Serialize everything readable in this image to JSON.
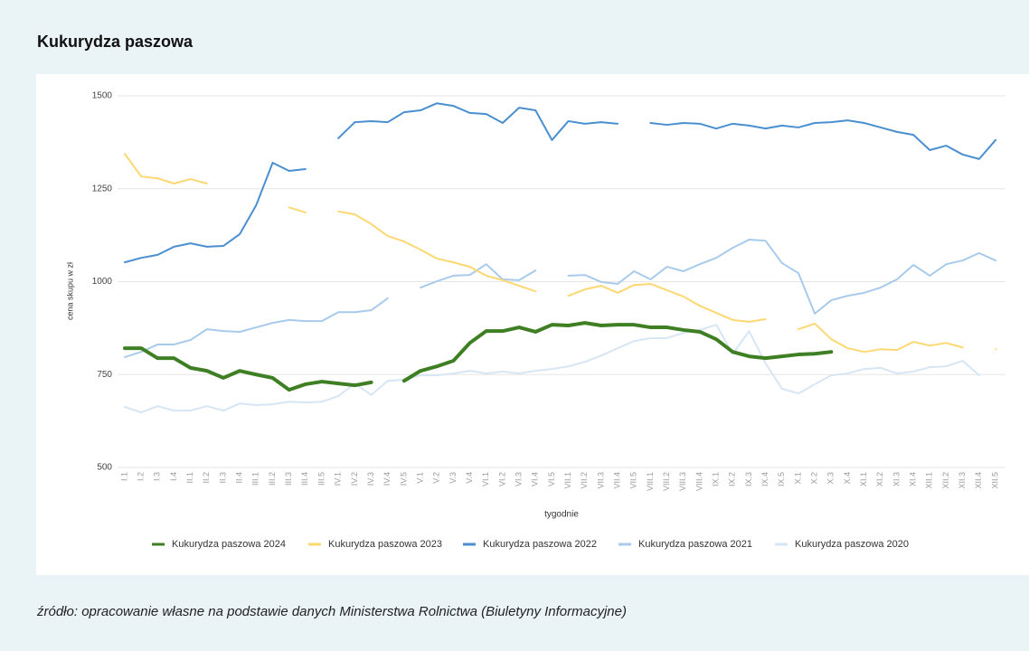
{
  "chart_data": {
    "type": "line",
    "title": "Kukurydza paszowa",
    "y_label": "cena skupu w zł",
    "x_label": "tygodnie",
    "source": "źródło: opracowanie własne na podstawie danych Ministerstwa Rolnictwa (Biuletyny Informacyjne)",
    "ylim": [
      500,
      1500
    ],
    "yticks": [
      500,
      750,
      1000,
      1250,
      1500
    ],
    "grid": true,
    "legend": "bottom",
    "categories": [
      "I.1",
      "I.2",
      "I.3",
      "I.4",
      "II.1",
      "II.2",
      "II.3",
      "II.4",
      "III.1",
      "III.2",
      "III.3",
      "III.4",
      "III.5",
      "IV.1",
      "IV.2",
      "IV.3",
      "IV.4",
      "IV.5",
      "V.1",
      "V.2",
      "V.3",
      "V.4",
      "VI.1",
      "VI.2",
      "VI.3",
      "VI.4",
      "VI.5",
      "VII.1",
      "VII.2",
      "VII.3",
      "VII.4",
      "VII.5",
      "VIII.1",
      "VIII.2",
      "VIII.3",
      "VIII.4",
      "IX.1",
      "IX.2",
      "IX.3",
      "IX.4",
      "IX.5",
      "X.1",
      "X.2",
      "X.3",
      "X.4",
      "XI.1",
      "XI.2",
      "XI.3",
      "XI.4",
      "XII.1",
      "XII.2",
      "XII.3",
      "XII.4",
      "XII.5"
    ],
    "series": [
      {
        "name": "Kukurydza paszowa 2024",
        "color": "#3f7f24",
        "width": 4,
        "values": [
          821,
          821,
          794,
          794,
          768,
          760,
          741,
          760,
          750,
          741,
          709,
          724,
          731,
          726,
          721,
          729,
          null,
          733,
          760,
          772,
          787,
          835,
          867,
          867,
          877,
          865,
          884,
          882,
          889,
          882,
          884,
          884,
          877,
          877,
          870,
          865,
          845,
          811,
          799,
          794,
          799,
          804,
          806,
          811,
          null,
          null,
          null,
          null,
          null,
          null,
          null,
          null,
          null,
          null
        ]
      },
      {
        "name": "Kukurydza paszowa 2023",
        "color": "#fcd872",
        "width": 2,
        "values": [
          1344,
          1283,
          1278,
          1264,
          1276,
          1264,
          null,
          null,
          null,
          null,
          1200,
          1186,
          null,
          1189,
          1181,
          1155,
          1123,
          1108,
          1086,
          1062,
          1052,
          1040,
          1016,
          1004,
          989,
          974,
          null,
          962,
          979,
          989,
          970,
          991,
          994,
          977,
          960,
          935,
          916,
          897,
          892,
          899,
          null,
          872,
          887,
          845,
          821,
          811,
          818,
          816,
          838,
          828,
          835,
          823,
          null,
          818
        ]
      },
      {
        "name": "Kukurydza paszowa 2022",
        "color": "#4a8fd0",
        "width": 2,
        "values": [
          1052,
          1064,
          1072,
          1094,
          1103,
          1094,
          1096,
          1128,
          1206,
          1320,
          1298,
          1303,
          null,
          1386,
          1429,
          1432,
          1429,
          1456,
          1461,
          1480,
          1473,
          1454,
          1451,
          1427,
          1468,
          1461,
          1381,
          1432,
          1425,
          1429,
          1425,
          null,
          1427,
          1422,
          1427,
          1425,
          1412,
          1425,
          1420,
          1412,
          1420,
          1415,
          1427,
          1429,
          1434,
          1427,
          1415,
          1403,
          1395,
          1354,
          1366,
          1342,
          1330,
          1381
        ]
      },
      {
        "name": "Kukurydza paszowa 2021",
        "color": "#a8cbec",
        "width": 2,
        "values": [
          797,
          811,
          831,
          831,
          843,
          872,
          867,
          865,
          877,
          889,
          897,
          894,
          894,
          918,
          918,
          923,
          955,
          null,
          984,
          1001,
          1016,
          1018,
          1047,
          1006,
          1004,
          1030,
          null,
          1016,
          1018,
          999,
          994,
          1028,
          1006,
          1040,
          1028,
          1047,
          1064,
          1091,
          1113,
          1110,
          1050,
          1023,
          914,
          950,
          962,
          970,
          984,
          1006,
          1045,
          1016,
          1047,
          1057,
          1077,
          1057
        ]
      },
      {
        "name": "Kukurydza paszowa 2020",
        "color": "#d6e6f5",
        "width": 2,
        "values": [
          663,
          648,
          665,
          653,
          653,
          665,
          653,
          672,
          668,
          670,
          677,
          675,
          677,
          692,
          726,
          695,
          733,
          736,
          748,
          748,
          753,
          760,
          753,
          758,
          753,
          760,
          765,
          772,
          784,
          801,
          821,
          840,
          848,
          848,
          862,
          870,
          884,
          806,
          867,
          780,
          712,
          699,
          724,
          748,
          753,
          765,
          768,
          753,
          758,
          770,
          772,
          787,
          748,
          null
        ]
      }
    ]
  }
}
